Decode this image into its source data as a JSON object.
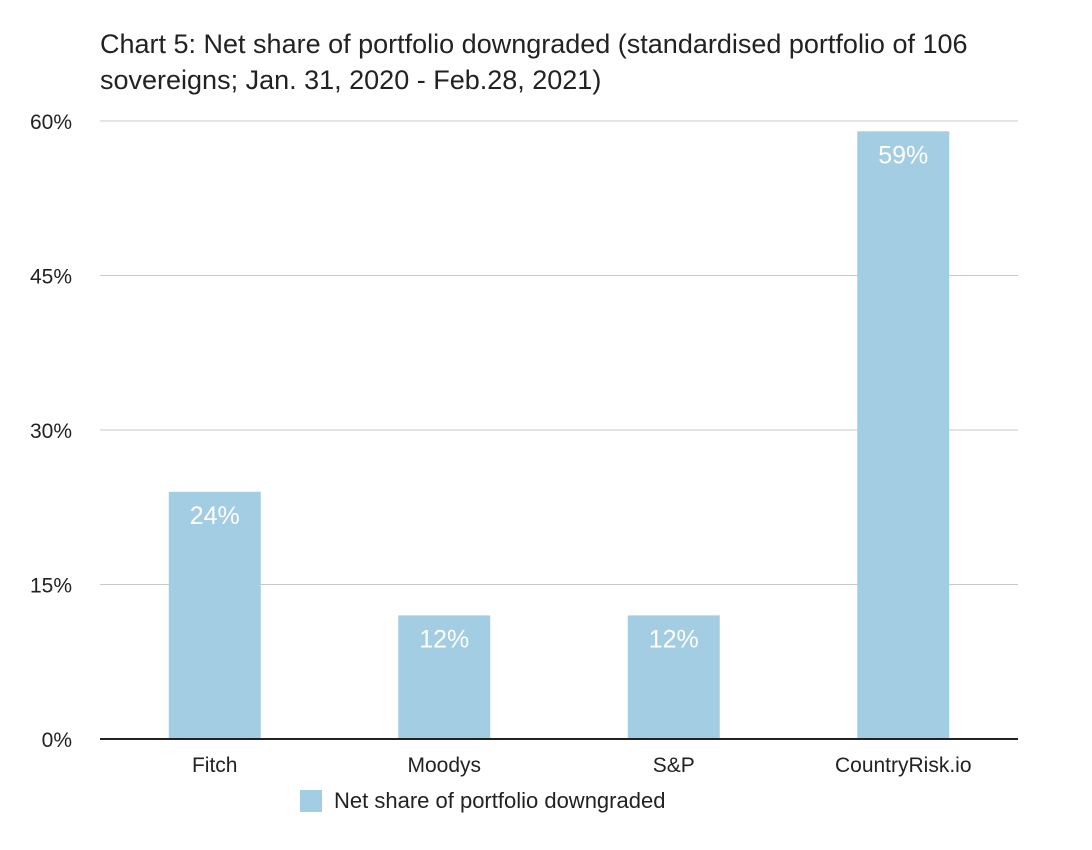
{
  "chart_data": {
    "type": "bar",
    "title": "Chart 5: Net share of portfolio downgraded (standardised portfolio of 106 sovereigns; Jan. 31, 2020 - Feb.28, 2021)",
    "categories": [
      "Fitch",
      "Moodys",
      "S&P",
      "CountryRisk.io"
    ],
    "series": [
      {
        "name": "Net share of portfolio downgraded",
        "values": [
          24,
          12,
          12,
          59
        ],
        "data_labels": [
          "24%",
          "12%",
          "12%",
          "59%"
        ]
      }
    ],
    "ylim": [
      0,
      60
    ],
    "yticks": [
      0,
      15,
      30,
      45,
      60
    ],
    "ytick_labels": [
      "0%",
      "15%",
      "30%",
      "45%",
      "60%"
    ],
    "xlabel": "",
    "ylabel": "",
    "grid": true,
    "legend_position": "bottom",
    "colors": {
      "bar": "#a3cde2",
      "grid": "#c8c8c8",
      "axis": "#222222"
    }
  }
}
